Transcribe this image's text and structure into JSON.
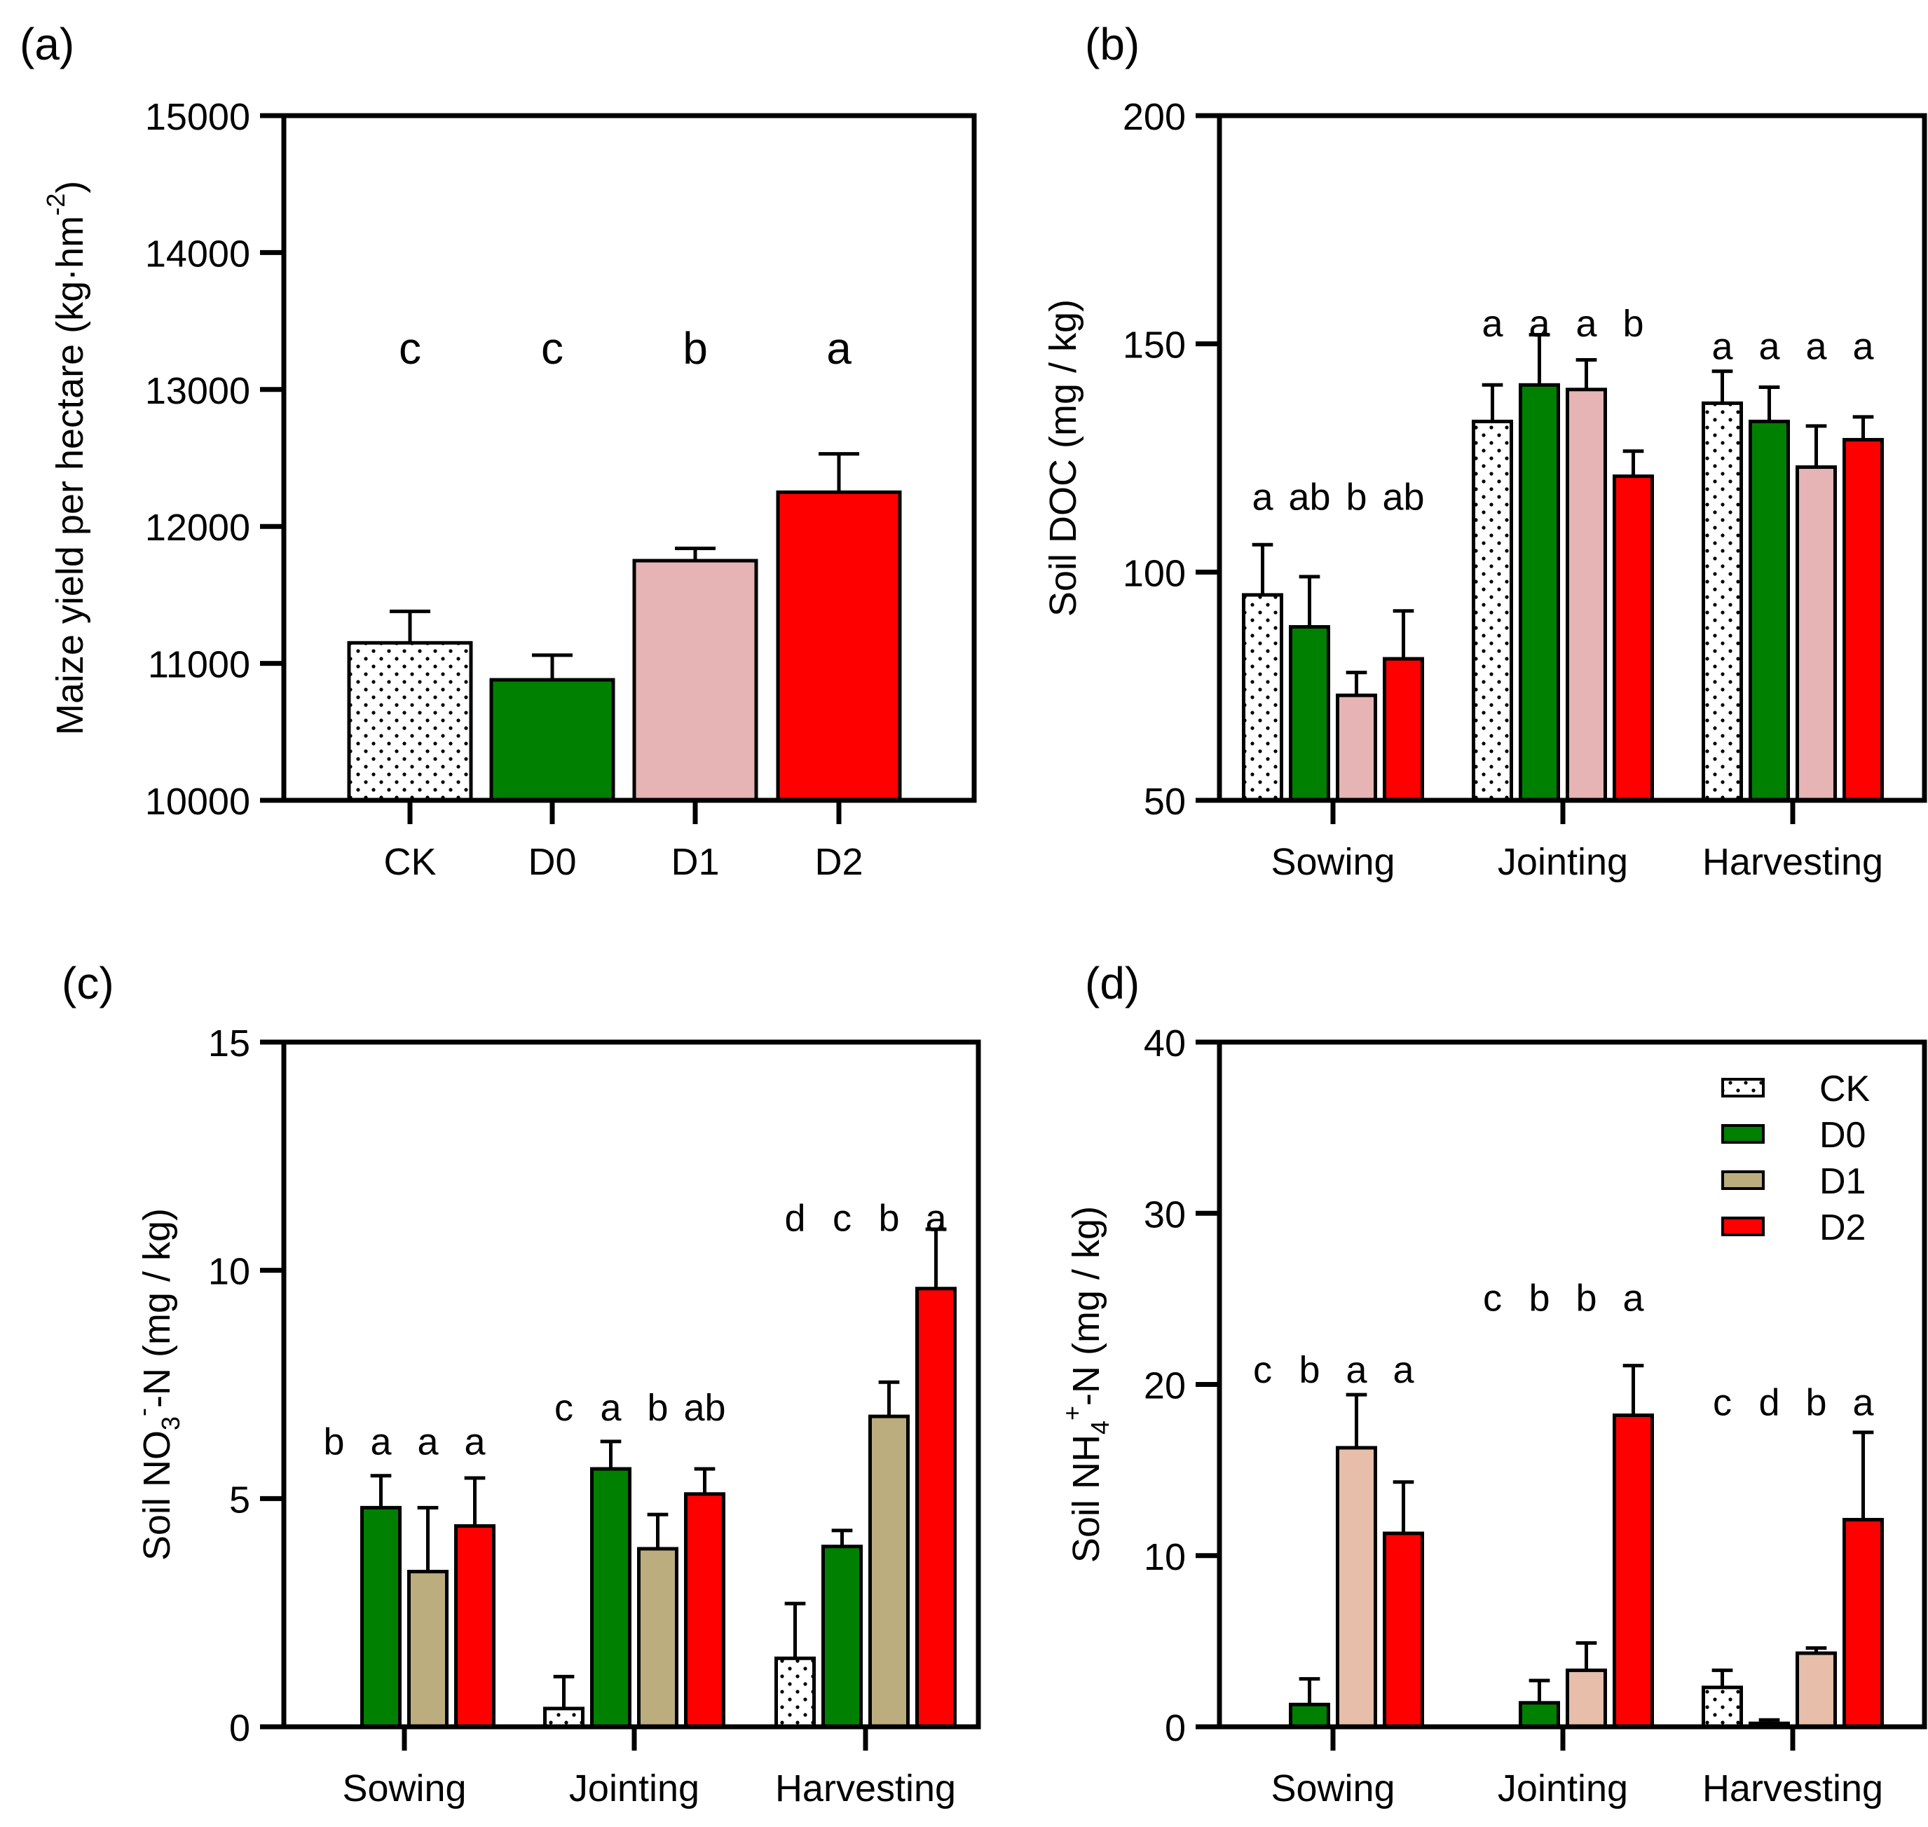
{
  "patterns": {
    "CK": "dotted",
    "D0": "solid",
    "D1": "solid",
    "D2": "solid"
  },
  "chart_data": [
    {
      "id": "a",
      "type": "bar",
      "panel_label": "(a)",
      "ylabel": "Maize yield per hectare (kg·hm",
      "ylabel_sup": "-2",
      "ylabel_close": ")",
      "ylim": [
        10000,
        15000
      ],
      "yticks": [
        10000,
        11000,
        12000,
        13000,
        14000,
        15000
      ],
      "categories": [
        "CK",
        "D0",
        "D1",
        "D2"
      ],
      "values": [
        11150,
        10880,
        11750,
        12250
      ],
      "errors": [
        230,
        180,
        90,
        280
      ],
      "colors": [
        "#ffffff",
        "#008000",
        "#e6b4b4",
        "#ff0000"
      ],
      "letters": [
        "c",
        "c",
        "b",
        "a"
      ],
      "letter_value": 13300
    },
    {
      "id": "b",
      "type": "bar",
      "panel_label": "(b)",
      "ylabel": "Soil DOC (mg / kg)",
      "ylim": [
        50,
        200
      ],
      "yticks": [
        50,
        100,
        150,
        200
      ],
      "categories": [
        "Sowing",
        "Jointing",
        "Harvesting"
      ],
      "series": [
        {
          "name": "CK",
          "color": "#ffffff",
          "values": [
            95,
            133,
            137
          ],
          "errors": [
            11,
            8,
            7
          ]
        },
        {
          "name": "D0",
          "color": "#008000",
          "values": [
            88,
            141,
            133
          ],
          "errors": [
            11,
            11,
            7.5
          ]
        },
        {
          "name": "D1",
          "color": "#e6b4b4",
          "values": [
            73,
            140,
            123
          ],
          "errors": [
            5,
            6.5,
            9
          ]
        },
        {
          "name": "D2",
          "color": "#ff0000",
          "values": [
            81,
            121,
            129
          ],
          "errors": [
            10.5,
            5.5,
            5
          ]
        }
      ],
      "letters": [
        [
          "a",
          "ab",
          "b",
          "ab"
        ],
        [
          "a",
          "a",
          "a",
          "b"
        ],
        [
          "a",
          "a",
          "a",
          "a"
        ]
      ],
      "letter_values": [
        117,
        155,
        150
      ]
    },
    {
      "id": "c",
      "type": "bar",
      "panel_label": "(c)",
      "ylabel": "Soil NO",
      "ylabel_sub": "3",
      "ylabel_sup": "-",
      "ylabel_close": "-N (mg / kg)",
      "ylim": [
        0,
        15
      ],
      "yticks": [
        0,
        5,
        10,
        15
      ],
      "categories": [
        "Sowing",
        "Jointing",
        "Harvesting"
      ],
      "series": [
        {
          "name": "CK",
          "color": "#ffffff",
          "values": [
            0,
            0.4,
            1.5
          ],
          "errors": [
            0,
            0.7,
            1.2
          ]
        },
        {
          "name": "D0",
          "color": "#008000",
          "values": [
            4.8,
            5.65,
            3.95
          ],
          "errors": [
            0.7,
            0.6,
            0.35
          ]
        },
        {
          "name": "D1",
          "color": "#bcad7e",
          "values": [
            3.4,
            3.9,
            6.8
          ],
          "errors": [
            1.4,
            0.75,
            0.75
          ]
        },
        {
          "name": "D2",
          "color": "#ff0000",
          "values": [
            4.4,
            5.1,
            9.6
          ],
          "errors": [
            1.05,
            0.55,
            1.3
          ]
        }
      ],
      "letters": [
        [
          "b",
          "a",
          "a",
          "a"
        ],
        [
          "c",
          "a",
          "b",
          "ab"
        ],
        [
          "d",
          "c",
          "b",
          "a"
        ]
      ],
      "letter_values": [
        6.3,
        7.05,
        11.2
      ]
    },
    {
      "id": "d",
      "type": "bar",
      "panel_label": "(d)",
      "ylabel": "Soil NH",
      "ylabel_sub": "4",
      "ylabel_sup": "+",
      "ylabel_close": "-N (mg / kg)",
      "ylim": [
        0,
        40
      ],
      "yticks": [
        0,
        10,
        20,
        30,
        40
      ],
      "categories": [
        "Sowing",
        "Jointing",
        "Harvesting"
      ],
      "series": [
        {
          "name": "CK",
          "color": "#ffffff",
          "values": [
            0,
            0,
            2.3
          ],
          "errors": [
            0,
            0,
            1
          ]
        },
        {
          "name": "D0",
          "color": "#008000",
          "values": [
            1.3,
            1.4,
            0.2
          ],
          "errors": [
            1.5,
            1.3,
            0.2
          ]
        },
        {
          "name": "D1",
          "color": "#e6beaa",
          "values": [
            16.3,
            3.3,
            4.3
          ],
          "errors": [
            3.1,
            1.6,
            0.3
          ]
        },
        {
          "name": "D2",
          "color": "#ff0000",
          "values": [
            11.3,
            18.2,
            12.1
          ],
          "errors": [
            3,
            2.9,
            5.1
          ]
        }
      ],
      "letters": [
        [
          "c",
          "b",
          "a",
          "a"
        ],
        [
          "c",
          "b",
          "b",
          "a"
        ],
        [
          "c",
          "d",
          "b",
          "a"
        ]
      ],
      "letter_values": [
        21,
        25.2,
        19.1
      ],
      "legend": {
        "position": "top-right",
        "entries": [
          {
            "name": "CK",
            "color": "#ffffff"
          },
          {
            "name": "D0",
            "color": "#008000"
          },
          {
            "name": "D1",
            "color": "#bcad7e"
          },
          {
            "name": "D2",
            "color": "#ff0000"
          }
        ]
      }
    }
  ]
}
